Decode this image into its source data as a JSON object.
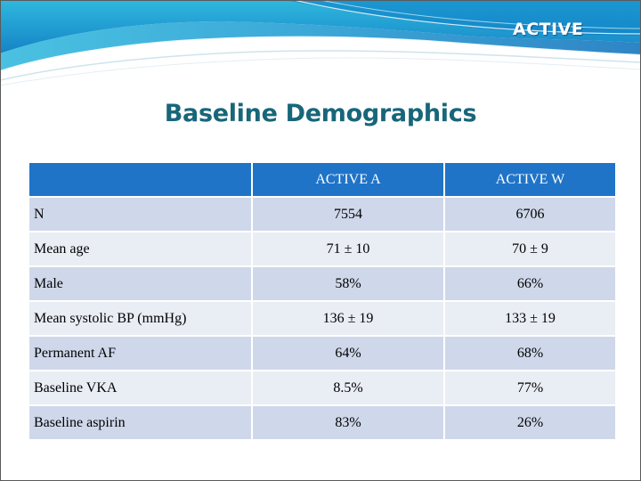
{
  "header": {
    "brand": "ACTIVE"
  },
  "title": "Baseline Demographics",
  "table": {
    "columns": [
      "",
      "ACTIVE A",
      "ACTIVE W"
    ],
    "rows": [
      {
        "label": "N",
        "active_a": "7554",
        "active_w": "6706"
      },
      {
        "label": "Mean age",
        "active_a": "71 ± 10",
        "active_w": "70 ± 9"
      },
      {
        "label": "Male",
        "active_a": "58%",
        "active_w": "66%"
      },
      {
        "label": "Mean systolic BP (mmHg)",
        "active_a": "136 ± 19",
        "active_w": "133 ± 19"
      },
      {
        "label": "Permanent AF",
        "active_a": "64%",
        "active_w": "68%"
      },
      {
        "label": "Baseline VKA",
        "active_a": "8.5%",
        "active_w": "77%"
      },
      {
        "label": "Baseline aspirin",
        "active_a": "83%",
        "active_w": "26%"
      }
    ]
  },
  "colors": {
    "title": "#17667a",
    "header_row": "#1f74c8",
    "row_dark": "#cfd8ea",
    "row_light": "#e9edf4"
  }
}
